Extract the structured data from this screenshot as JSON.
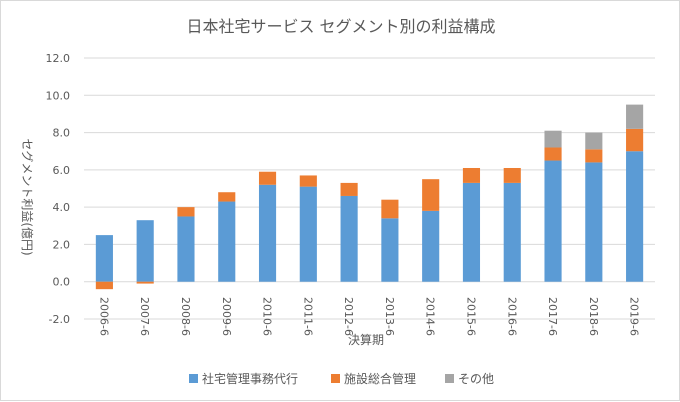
{
  "chart_data": {
    "type": "bar",
    "stacked": true,
    "title": "日本社宅サービス セグメント別の利益構成",
    "xlabel": "決算期",
    "ylabel": "セグメント利益(億円)",
    "ylim": [
      -2.0,
      12.0
    ],
    "ytick_step": 2.0,
    "ytick_labels": [
      "-2.0",
      "0.0",
      "2.0",
      "4.0",
      "6.0",
      "8.0",
      "10.0",
      "12.0"
    ],
    "grid": true,
    "legend_position": "bottom",
    "categories": [
      "2006-6",
      "2007-6",
      "2008-6",
      "2009-6",
      "2010-6",
      "2011-6",
      "2012-6",
      "2013-6",
      "2014-6",
      "2015-6",
      "2016-6",
      "2017-6",
      "2018-6",
      "2019-6"
    ],
    "series": [
      {
        "name": "社宅管理事務代行",
        "color": "#5b9bd5",
        "values": [
          2.5,
          3.3,
          3.5,
          4.3,
          5.2,
          5.1,
          4.6,
          3.4,
          3.8,
          5.3,
          5.3,
          6.5,
          6.4,
          7.0
        ]
      },
      {
        "name": "施設総合管理",
        "color": "#ed7d31",
        "values": [
          -0.4,
          -0.1,
          0.5,
          0.5,
          0.7,
          0.6,
          0.7,
          1.0,
          1.7,
          0.8,
          0.8,
          0.7,
          0.7,
          1.2
        ]
      },
      {
        "name": "その他",
        "color": "#a5a5a5",
        "values": [
          0.0,
          0.0,
          0.0,
          0.0,
          0.0,
          0.0,
          0.0,
          0.0,
          0.0,
          0.0,
          0.0,
          0.9,
          0.9,
          1.3
        ]
      }
    ]
  }
}
